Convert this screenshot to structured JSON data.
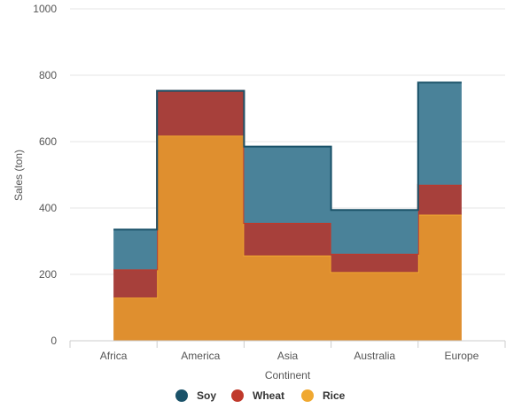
{
  "chart_data": {
    "type": "area",
    "stacked": true,
    "step": "center",
    "categories": [
      "Africa",
      "America",
      "Asia",
      "Australia",
      "Europe"
    ],
    "series": [
      {
        "name": "Rice",
        "values": [
          130,
          618,
          257,
          207,
          380
        ],
        "color": "#df8f2f",
        "line_color": "#f0a830"
      },
      {
        "name": "Wheat",
        "values": [
          85,
          135,
          98,
          55,
          90
        ],
        "color": "#a7403b",
        "line_color": "#c0392b"
      },
      {
        "name": "Soy",
        "values": [
          120,
          0,
          230,
          132,
          308
        ],
        "color": "#4a8299",
        "line_color": "#1a5269"
      }
    ],
    "xlabel": "Continent",
    "ylabel": "Sales (ton)",
    "ylim": [
      0,
      1000
    ],
    "yticks": [
      0,
      200,
      400,
      600,
      800,
      1000
    ],
    "grid": true,
    "legend": {
      "position": "bottom-center",
      "items": [
        {
          "label": "Soy",
          "color": "#1a5269"
        },
        {
          "label": "Wheat",
          "color": "#c0392b"
        },
        {
          "label": "Rice",
          "color": "#f0a830"
        }
      ]
    }
  }
}
